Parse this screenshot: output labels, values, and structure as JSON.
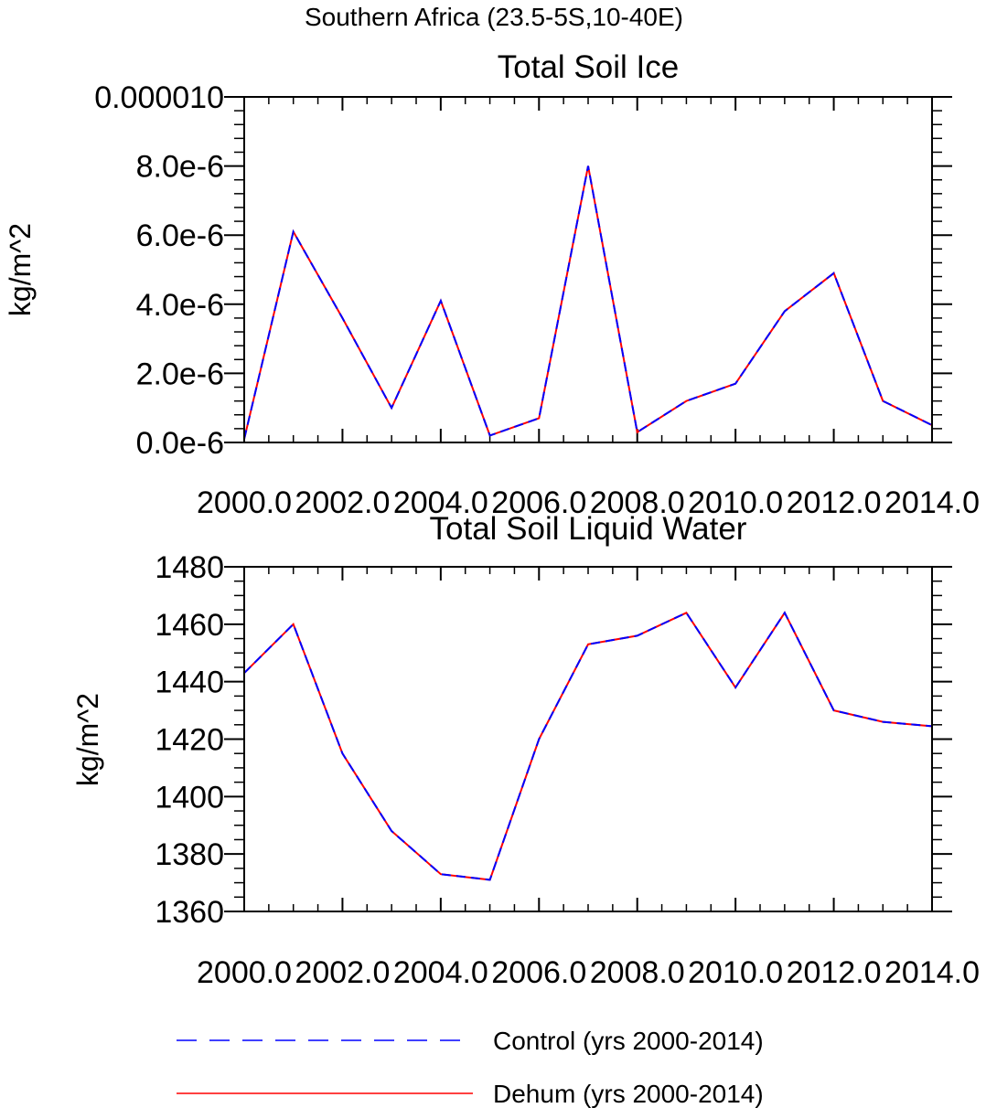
{
  "figure_title": "Southern Africa (23.5-5S,10-40E)",
  "chart_data": [
    {
      "type": "line",
      "title": "Total Soil Ice",
      "ylabel": "kg/m^2",
      "xlabel": "",
      "x": [
        2000,
        2001,
        2002,
        2003,
        2004,
        2005,
        2006,
        2007,
        2008,
        2009,
        2010,
        2011,
        2012,
        2013,
        2014
      ],
      "xlim": [
        2000,
        2014
      ],
      "ylim": [
        0,
        1e-05
      ],
      "x_ticks": [
        2000,
        2002,
        2004,
        2006,
        2008,
        2010,
        2012,
        2014
      ],
      "x_tick_labels": [
        "2000.0",
        "2002.0",
        "2004.0",
        "2006.0",
        "2008.0",
        "2010.0",
        "2012.0",
        "2014.0"
      ],
      "y_ticks": [
        0,
        2e-06,
        4e-06,
        6e-06,
        8e-06,
        1e-05
      ],
      "y_tick_labels": [
        "0.0e-6",
        "2.0e-6",
        "4.0e-6",
        "6.0e-6",
        "8.0e-6",
        "0.000010"
      ],
      "grid": false,
      "series": [
        {
          "name": "Control (yrs 2000-2014)",
          "color": "#0000ff",
          "dash": "dashed",
          "values": [
            1e-07,
            6.1e-06,
            3.6e-06,
            1e-06,
            4.1e-06,
            2e-07,
            7e-07,
            8e-06,
            3e-07,
            1.2e-06,
            1.7e-06,
            3.8e-06,
            4.9e-06,
            1.2e-06,
            5e-07
          ]
        },
        {
          "name": "Dehum (yrs 2000-2014)",
          "color": "#ff0000",
          "dash": "solid",
          "values": [
            1e-07,
            6.1e-06,
            3.6e-06,
            1e-06,
            4.1e-06,
            2e-07,
            7e-07,
            8e-06,
            3e-07,
            1.2e-06,
            1.7e-06,
            3.8e-06,
            4.9e-06,
            1.2e-06,
            5e-07
          ]
        }
      ]
    },
    {
      "type": "line",
      "title": "Total Soil Liquid Water",
      "ylabel": "kg/m^2",
      "xlabel": "",
      "x": [
        2000,
        2001,
        2002,
        2003,
        2004,
        2005,
        2006,
        2007,
        2008,
        2009,
        2010,
        2011,
        2012,
        2013,
        2014
      ],
      "xlim": [
        2000,
        2014
      ],
      "ylim": [
        1360,
        1480
      ],
      "x_ticks": [
        2000,
        2002,
        2004,
        2006,
        2008,
        2010,
        2012,
        2014
      ],
      "x_tick_labels": [
        "2000.0",
        "2002.0",
        "2004.0",
        "2006.0",
        "2008.0",
        "2010.0",
        "2012.0",
        "2014.0"
      ],
      "y_ticks": [
        1360,
        1380,
        1400,
        1420,
        1440,
        1460,
        1480
      ],
      "y_tick_labels": [
        "1360",
        "1380",
        "1400",
        "1420",
        "1440",
        "1460",
        "1480"
      ],
      "grid": false,
      "series": [
        {
          "name": "Control (yrs 2000-2014)",
          "color": "#0000ff",
          "dash": "dashed",
          "values": [
            1443,
            1460,
            1415,
            1388,
            1373,
            1371,
            1420,
            1453,
            1456,
            1464,
            1438,
            1464,
            1430,
            1426,
            1424.5
          ]
        },
        {
          "name": "Dehum (yrs 2000-2014)",
          "color": "#ff0000",
          "dash": "solid",
          "values": [
            1443,
            1460,
            1415,
            1388,
            1373,
            1371,
            1420,
            1453,
            1456,
            1464,
            1438,
            1464,
            1430,
            1426,
            1424.5
          ]
        }
      ]
    }
  ],
  "legend": {
    "placement": "bottom",
    "entries": [
      {
        "label": "Control (yrs 2000-2014)",
        "color": "#0000ff",
        "dash": "dashed"
      },
      {
        "label": "Dehum (yrs 2000-2014)",
        "color": "#ff0000",
        "dash": "solid"
      }
    ]
  }
}
